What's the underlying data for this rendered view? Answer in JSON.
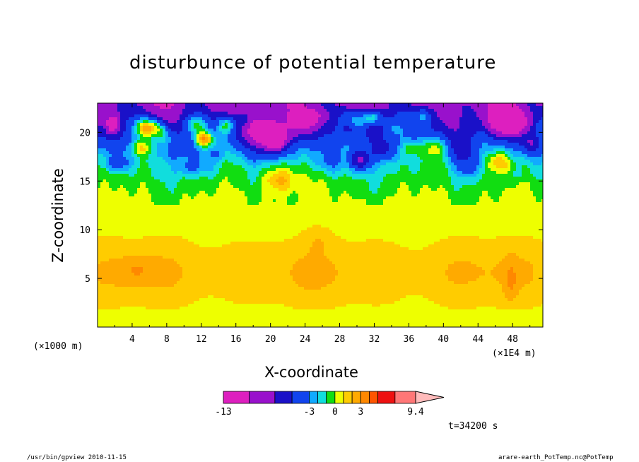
{
  "chart_data": {
    "type": "heatmap",
    "title": "disturbunce of potential temperature",
    "xlabel": "X-coordinate",
    "ylabel": "Z-coordinate",
    "x_unit_left": "(×1000 m)",
    "x_unit_right": "(×1E4 m)",
    "xlim": [
      0,
      51.5
    ],
    "ylim": [
      0,
      23
    ],
    "x_ticks": [
      "4",
      "8",
      "12",
      "16",
      "20",
      "24",
      "28",
      "32",
      "36",
      "40",
      "44",
      "48"
    ],
    "y_ticks": [
      "5",
      "10",
      "15",
      "20"
    ],
    "colorbar": {
      "min": -13,
      "max": 9.4,
      "tick_labels": [
        "-13",
        "-3",
        "0",
        "3",
        "9.4"
      ],
      "levels": [
        {
          "lo": -13,
          "hi": -10,
          "color": "#dd1fbf"
        },
        {
          "lo": -10,
          "hi": -7,
          "color": "#9911cc"
        },
        {
          "lo": -7,
          "hi": -5,
          "color": "#1a11c8"
        },
        {
          "lo": -5,
          "hi": -3,
          "color": "#1144ee"
        },
        {
          "lo": -3,
          "hi": -2,
          "color": "#11aaff"
        },
        {
          "lo": -2,
          "hi": -1,
          "color": "#11dddd"
        },
        {
          "lo": -1,
          "hi": 0,
          "color": "#11dd11"
        },
        {
          "lo": 0,
          "hi": 1,
          "color": "#eeff00"
        },
        {
          "lo": 1,
          "hi": 2,
          "color": "#ffcc00"
        },
        {
          "lo": 2,
          "hi": 3,
          "color": "#ffaa00"
        },
        {
          "lo": 3,
          "hi": 4,
          "color": "#ff8800"
        },
        {
          "lo": 4,
          "hi": 5,
          "color": "#ff5500"
        },
        {
          "lo": 5,
          "hi": 7,
          "color": "#ee1111"
        },
        {
          "lo": 7,
          "hi": 9.4,
          "color": "#ff7777"
        },
        {
          "lo": 9.4,
          "hi": 12,
          "color": "#ffbbbb"
        }
      ]
    },
    "time_label": "t=34200 s",
    "footer_left": "/usr/bin/gpview  2010-11-15",
    "footer_right": "arare-earth_PotTemp.nc@PotTemp"
  }
}
